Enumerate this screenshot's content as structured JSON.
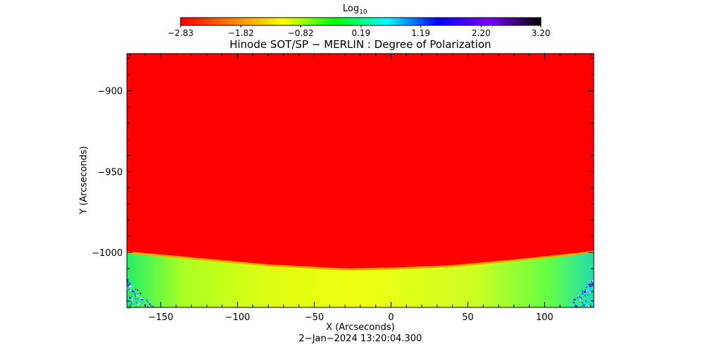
{
  "chart_data": {
    "type": "heatmap",
    "title": "Hinode SOT/SP − MERLIN : Degree of Polarization",
    "xlabel": "X (Arcseconds)",
    "ylabel": "Y (Arcseconds)",
    "timestamp": "2−Jan−2024  13:20:04.300",
    "xlim": [
      -172,
      132
    ],
    "ylim": [
      -1034,
      -877
    ],
    "xticks": [
      -150,
      -100,
      -50,
      0,
      50,
      100
    ],
    "xtick_labels": [
      "−150",
      "−100",
      "−50",
      "0",
      "50",
      "100"
    ],
    "yticks": [
      -900,
      -950,
      -1000
    ],
    "ytick_labels": [
      "−900",
      "−950",
      "−1000"
    ],
    "colorbar": {
      "label_base": "Log",
      "label_sub": "10",
      "range": [
        -2.83,
        3.2
      ],
      "ticks": [
        -2.83,
        -1.82,
        -0.82,
        0.19,
        1.19,
        2.2,
        3.2
      ],
      "tick_labels": [
        "−2.83",
        "−1.82",
        "−0.82",
        "0.19",
        "1.19",
        "2.20",
        "3.20"
      ],
      "colors": [
        "#ff0000",
        "#ff7f00",
        "#ffff00",
        "#00ff00",
        "#00ffff",
        "#0000ff",
        "#7f00ff",
        "#000000"
      ]
    },
    "limb": {
      "description_free": true,
      "x": [
        -172,
        -120,
        -80,
        -40,
        -28,
        0,
        40,
        80,
        120,
        132
      ],
      "y": [
        -1000,
        -1004.5,
        -1008,
        -1010,
        -1010.5,
        -1010,
        -1008.5,
        -1005,
        -1001,
        -999.5
      ]
    },
    "disk_value": -2.83,
    "offlimb_value_range": [
      -1.0,
      0.6
    ]
  }
}
